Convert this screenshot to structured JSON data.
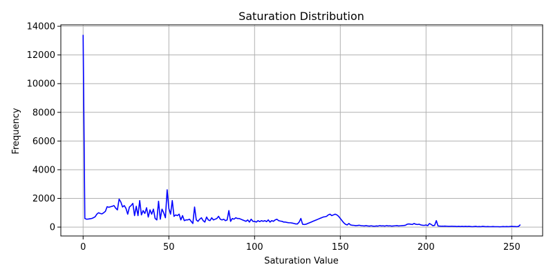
{
  "chart_data": {
    "type": "line",
    "title": "Saturation Distribution",
    "xlabel": "Saturation Value",
    "ylabel": "Frequency",
    "xlim": [
      -13,
      268
    ],
    "ylim": [
      -620,
      14100
    ],
    "xticks": [
      0,
      50,
      100,
      150,
      200,
      250
    ],
    "yticks": [
      0,
      2000,
      4000,
      6000,
      8000,
      10000,
      12000,
      14000
    ],
    "grid": true,
    "legend": "none",
    "series": [
      {
        "color": "#0000ff",
        "points": [
          [
            0,
            13400
          ],
          [
            1,
            600
          ],
          [
            2,
            550
          ],
          [
            3,
            560
          ],
          [
            4,
            580
          ],
          [
            5,
            600
          ],
          [
            6,
            650
          ],
          [
            7,
            720
          ],
          [
            8,
            900
          ],
          [
            9,
            1000
          ],
          [
            10,
            950
          ],
          [
            11,
            920
          ],
          [
            12,
            1000
          ],
          [
            13,
            1100
          ],
          [
            14,
            1420
          ],
          [
            15,
            1380
          ],
          [
            16,
            1420
          ],
          [
            17,
            1450
          ],
          [
            18,
            1500
          ],
          [
            19,
            1320
          ],
          [
            20,
            1200
          ],
          [
            21,
            1950
          ],
          [
            22,
            1750
          ],
          [
            23,
            1400
          ],
          [
            24,
            1500
          ],
          [
            25,
            1300
          ],
          [
            26,
            900
          ],
          [
            27,
            1400
          ],
          [
            28,
            1500
          ],
          [
            29,
            1650
          ],
          [
            30,
            800
          ],
          [
            31,
            1450
          ],
          [
            32,
            800
          ],
          [
            33,
            1850
          ],
          [
            34,
            850
          ],
          [
            35,
            1150
          ],
          [
            36,
            950
          ],
          [
            37,
            1350
          ],
          [
            38,
            700
          ],
          [
            39,
            1200
          ],
          [
            40,
            900
          ],
          [
            41,
            1250
          ],
          [
            42,
            600
          ],
          [
            43,
            500
          ],
          [
            44,
            1800
          ],
          [
            45,
            550
          ],
          [
            46,
            1250
          ],
          [
            47,
            1000
          ],
          [
            48,
            650
          ],
          [
            49,
            2600
          ],
          [
            50,
            1300
          ],
          [
            51,
            900
          ],
          [
            52,
            1850
          ],
          [
            53,
            750
          ],
          [
            54,
            850
          ],
          [
            55,
            800
          ],
          [
            56,
            900
          ],
          [
            57,
            500
          ],
          [
            58,
            800
          ],
          [
            59,
            450
          ],
          [
            60,
            500
          ],
          [
            61,
            500
          ],
          [
            62,
            550
          ],
          [
            63,
            400
          ],
          [
            64,
            250
          ],
          [
            65,
            1400
          ],
          [
            66,
            500
          ],
          [
            67,
            400
          ],
          [
            68,
            550
          ],
          [
            69,
            650
          ],
          [
            70,
            450
          ],
          [
            71,
            350
          ],
          [
            72,
            700
          ],
          [
            73,
            500
          ],
          [
            74,
            450
          ],
          [
            75,
            650
          ],
          [
            76,
            500
          ],
          [
            77,
            550
          ],
          [
            78,
            600
          ],
          [
            79,
            750
          ],
          [
            80,
            550
          ],
          [
            81,
            500
          ],
          [
            82,
            550
          ],
          [
            83,
            450
          ],
          [
            84,
            500
          ],
          [
            85,
            1150
          ],
          [
            86,
            400
          ],
          [
            87,
            600
          ],
          [
            88,
            550
          ],
          [
            89,
            650
          ],
          [
            90,
            600
          ],
          [
            91,
            600
          ],
          [
            92,
            550
          ],
          [
            93,
            500
          ],
          [
            94,
            450
          ],
          [
            95,
            400
          ],
          [
            96,
            500
          ],
          [
            97,
            350
          ],
          [
            98,
            550
          ],
          [
            99,
            400
          ],
          [
            100,
            400
          ],
          [
            101,
            350
          ],
          [
            102,
            450
          ],
          [
            103,
            380
          ],
          [
            104,
            450
          ],
          [
            105,
            400
          ],
          [
            106,
            450
          ],
          [
            107,
            380
          ],
          [
            108,
            500
          ],
          [
            109,
            350
          ],
          [
            110,
            450
          ],
          [
            111,
            400
          ],
          [
            112,
            500
          ],
          [
            113,
            550
          ],
          [
            114,
            450
          ],
          [
            115,
            420
          ],
          [
            116,
            400
          ],
          [
            117,
            350
          ],
          [
            118,
            350
          ],
          [
            119,
            320
          ],
          [
            120,
            300
          ],
          [
            121,
            300
          ],
          [
            122,
            280
          ],
          [
            123,
            250
          ],
          [
            124,
            220
          ],
          [
            125,
            220
          ],
          [
            126,
            350
          ],
          [
            127,
            600
          ],
          [
            128,
            200
          ],
          [
            129,
            180
          ],
          [
            130,
            200
          ],
          [
            131,
            250
          ],
          [
            132,
            300
          ],
          [
            133,
            350
          ],
          [
            134,
            400
          ],
          [
            135,
            450
          ],
          [
            136,
            500
          ],
          [
            137,
            550
          ],
          [
            138,
            600
          ],
          [
            139,
            650
          ],
          [
            140,
            700
          ],
          [
            141,
            720
          ],
          [
            142,
            750
          ],
          [
            143,
            850
          ],
          [
            144,
            900
          ],
          [
            145,
            800
          ],
          [
            146,
            850
          ],
          [
            147,
            900
          ],
          [
            148,
            850
          ],
          [
            149,
            750
          ],
          [
            150,
            600
          ],
          [
            151,
            450
          ],
          [
            152,
            300
          ],
          [
            153,
            200
          ],
          [
            154,
            150
          ],
          [
            155,
            250
          ],
          [
            156,
            150
          ],
          [
            157,
            130
          ],
          [
            158,
            120
          ],
          [
            159,
            100
          ],
          [
            160,
            110
          ],
          [
            161,
            130
          ],
          [
            162,
            100
          ],
          [
            163,
            90
          ],
          [
            164,
            80
          ],
          [
            165,
            100
          ],
          [
            166,
            80
          ],
          [
            167,
            70
          ],
          [
            168,
            90
          ],
          [
            169,
            70
          ],
          [
            170,
            60
          ],
          [
            171,
            80
          ],
          [
            172,
            70
          ],
          [
            173,
            100
          ],
          [
            174,
            80
          ],
          [
            175,
            90
          ],
          [
            176,
            70
          ],
          [
            177,
            100
          ],
          [
            178,
            80
          ],
          [
            179,
            90
          ],
          [
            180,
            70
          ],
          [
            181,
            80
          ],
          [
            182,
            90
          ],
          [
            183,
            100
          ],
          [
            184,
            80
          ],
          [
            185,
            90
          ],
          [
            186,
            100
          ],
          [
            187,
            110
          ],
          [
            188,
            130
          ],
          [
            189,
            200
          ],
          [
            190,
            220
          ],
          [
            191,
            200
          ],
          [
            192,
            180
          ],
          [
            193,
            250
          ],
          [
            194,
            200
          ],
          [
            195,
            180
          ],
          [
            196,
            200
          ],
          [
            197,
            150
          ],
          [
            198,
            130
          ],
          [
            199,
            120
          ],
          [
            200,
            150
          ],
          [
            201,
            100
          ],
          [
            202,
            250
          ],
          [
            203,
            180
          ],
          [
            204,
            100
          ],
          [
            205,
            120
          ],
          [
            206,
            450
          ],
          [
            207,
            80
          ],
          [
            208,
            70
          ],
          [
            209,
            60
          ],
          [
            210,
            60
          ],
          [
            211,
            70
          ],
          [
            212,
            60
          ],
          [
            213,
            50
          ],
          [
            214,
            50
          ],
          [
            215,
            60
          ],
          [
            216,
            50
          ],
          [
            217,
            50
          ],
          [
            218,
            40
          ],
          [
            219,
            50
          ],
          [
            220,
            40
          ],
          [
            221,
            50
          ],
          [
            222,
            40
          ],
          [
            223,
            50
          ],
          [
            224,
            40
          ],
          [
            225,
            50
          ],
          [
            226,
            40
          ],
          [
            227,
            30
          ],
          [
            228,
            40
          ],
          [
            229,
            50
          ],
          [
            230,
            30
          ],
          [
            231,
            40
          ],
          [
            232,
            30
          ],
          [
            233,
            50
          ],
          [
            234,
            40
          ],
          [
            235,
            30
          ],
          [
            236,
            40
          ],
          [
            237,
            30
          ],
          [
            238,
            30
          ],
          [
            239,
            40
          ],
          [
            240,
            30
          ],
          [
            241,
            30
          ],
          [
            242,
            30
          ],
          [
            243,
            20
          ],
          [
            244,
            30
          ],
          [
            245,
            40
          ],
          [
            246,
            30
          ],
          [
            247,
            40
          ],
          [
            248,
            30
          ],
          [
            249,
            40
          ],
          [
            250,
            50
          ],
          [
            251,
            40
          ],
          [
            252,
            40
          ],
          [
            253,
            30
          ],
          [
            254,
            50
          ],
          [
            255,
            170
          ]
        ]
      }
    ]
  }
}
